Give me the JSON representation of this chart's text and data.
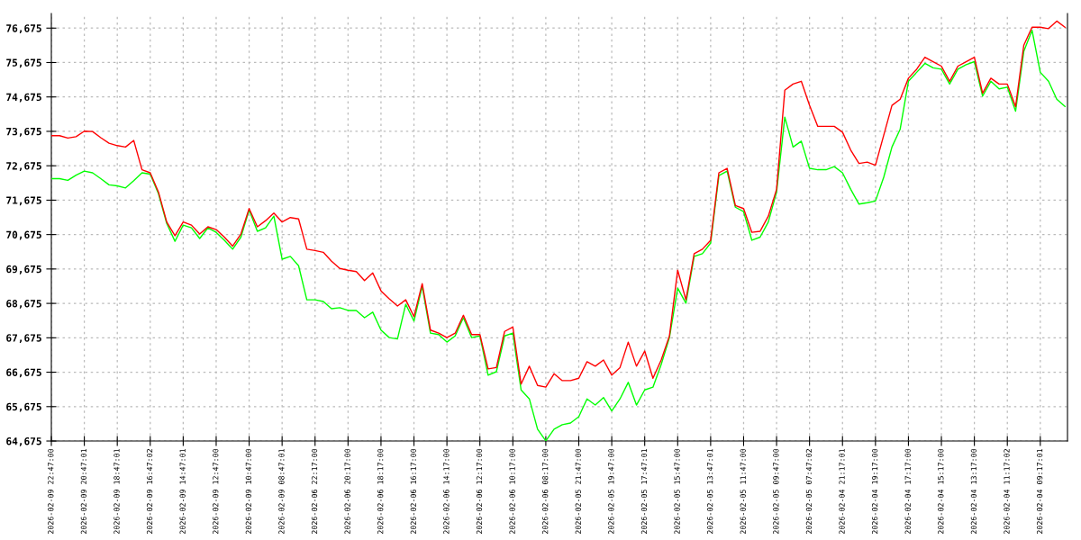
{
  "chart_data": {
    "type": "line",
    "categories": [
      "2026-02-09 22:47:00",
      null,
      null,
      null,
      "2026-02-09 20:47:01",
      null,
      null,
      null,
      "2026-02-09 18:47:01",
      null,
      null,
      null,
      "2026-02-09 16:47:02",
      null,
      null,
      null,
      "2026-02-09 14:47:01",
      null,
      null,
      null,
      "2026-02-09 12:47:00",
      null,
      null,
      null,
      "2026-02-09 10:47:00",
      null,
      null,
      null,
      "2026-02-09 08:47:01",
      null,
      null,
      null,
      "2026-02-06 22:17:00",
      null,
      null,
      null,
      "2026-02-06 20:17:00",
      null,
      null,
      null,
      "2026-02-06 18:17:00",
      null,
      null,
      null,
      "2026-02-06 16:17:00",
      null,
      null,
      null,
      "2026-02-06 14:17:00",
      null,
      null,
      null,
      "2026-02-06 12:17:00",
      null,
      null,
      null,
      "2026-02-06 10:17:00",
      null,
      null,
      null,
      "2026-02-06 08:17:00",
      null,
      null,
      null,
      "2026-02-05 21:47:00",
      null,
      null,
      null,
      "2026-02-05 19:47:00",
      null,
      null,
      null,
      "2026-02-05 17:47:01",
      null,
      null,
      null,
      "2026-02-05 15:47:00",
      null,
      null,
      null,
      "2026-02-05 13:47:01",
      null,
      null,
      null,
      "2026-02-05 11:47:00",
      null,
      null,
      null,
      "2026-02-05 09:47:00",
      null,
      null,
      null,
      "2026-02-05 07:47:02",
      null,
      null,
      null,
      "2026-02-04 21:17:01",
      null,
      null,
      null,
      "2026-02-04 19:17:00",
      null,
      null,
      null,
      "2026-02-04 17:17:00",
      null,
      null,
      null,
      "2026-02-04 15:17:00",
      null,
      null,
      null,
      "2026-02-04 13:17:00",
      null,
      null,
      null,
      "2026-02-04 11:17:02",
      null,
      null,
      null,
      "2026-02-04 09:17:01",
      null,
      null,
      null
    ],
    "series": [
      {
        "color": "#00ff00",
        "values": [
          72300,
          72300,
          72250,
          72400,
          72520,
          72470,
          72300,
          72120,
          72090,
          72030,
          72240,
          72470,
          72430,
          71860,
          71000,
          70480,
          70950,
          70870,
          70560,
          70870,
          70740,
          70510,
          70250,
          70600,
          71390,
          70770,
          70870,
          71210,
          69960,
          70040,
          69770,
          68780,
          68780,
          68730,
          68520,
          68550,
          68470,
          68470,
          68260,
          68420,
          67900,
          67680,
          67640,
          68650,
          68160,
          69170,
          67810,
          67770,
          67550,
          67730,
          68260,
          67680,
          67730,
          66590,
          66690,
          67730,
          67810,
          66160,
          65900,
          65020,
          64680,
          65020,
          65150,
          65200,
          65380,
          65900,
          65720,
          65940,
          65550,
          65900,
          66380,
          65720,
          66160,
          66240,
          66900,
          67680,
          69120,
          68680,
          70040,
          70120,
          70430,
          72390,
          72520,
          71470,
          71340,
          70510,
          70600,
          71040,
          71910,
          74090,
          73220,
          73390,
          72600,
          72560,
          72560,
          72650,
          72470,
          71990,
          71560,
          71600,
          71650,
          72340,
          73220,
          73740,
          75130,
          75390,
          75650,
          75520,
          75480,
          75050,
          75480,
          75610,
          75700,
          74700,
          75130,
          74910,
          74960,
          74260,
          76000,
          76610,
          75390,
          75130,
          74610,
          74400
        ]
      },
      {
        "color": "#ff0000",
        "values": [
          73550,
          73550,
          73480,
          73520,
          73680,
          73670,
          73490,
          73330,
          73260,
          73220,
          73410,
          72560,
          72470,
          71910,
          71040,
          70640,
          71040,
          70950,
          70690,
          70900,
          70820,
          70600,
          70340,
          70690,
          71430,
          70900,
          71080,
          71300,
          71040,
          71170,
          71130,
          70250,
          70210,
          70160,
          69900,
          69690,
          69640,
          69600,
          69340,
          69560,
          69040,
          68810,
          68600,
          68780,
          68290,
          69250,
          67900,
          67810,
          67680,
          67810,
          68330,
          67770,
          67770,
          66770,
          66810,
          67860,
          67990,
          66330,
          66850,
          66290,
          66240,
          66630,
          66430,
          66430,
          66500,
          66980,
          66850,
          67030,
          66590,
          66810,
          67550,
          66850,
          67290,
          66500,
          67030,
          67730,
          69640,
          68780,
          70120,
          70250,
          70510,
          72470,
          72600,
          71520,
          71430,
          70740,
          70770,
          71210,
          71990,
          74870,
          75050,
          75130,
          74430,
          73820,
          73820,
          73820,
          73650,
          73130,
          72740,
          72780,
          72690,
          73560,
          74430,
          74610,
          75220,
          75480,
          75830,
          75700,
          75570,
          75130,
          75570,
          75700,
          75830,
          74780,
          75220,
          75050,
          75050,
          74390,
          76180,
          76700,
          76700,
          76660,
          76880,
          76700
        ]
      }
    ],
    "ylim": [
      64675,
      77100
    ],
    "yticks": [
      {
        "value": 64675,
        "label": "64,675"
      },
      {
        "value": 65675,
        "label": "65,675"
      },
      {
        "value": 66675,
        "label": "66,675"
      },
      {
        "value": 67675,
        "label": "67,675"
      },
      {
        "value": 68675,
        "label": "68,675"
      },
      {
        "value": 69675,
        "label": "69,675"
      },
      {
        "value": 70675,
        "label": "70,675"
      },
      {
        "value": 71675,
        "label": "71,675"
      },
      {
        "value": 72675,
        "label": "72,675"
      },
      {
        "value": 73675,
        "label": "73,675"
      },
      {
        "value": 74675,
        "label": "74,675"
      },
      {
        "value": 75675,
        "label": "75,675"
      },
      {
        "value": 76675,
        "label": "76,675"
      }
    ],
    "grid": true,
    "marker": "none",
    "line_style": "solid"
  }
}
